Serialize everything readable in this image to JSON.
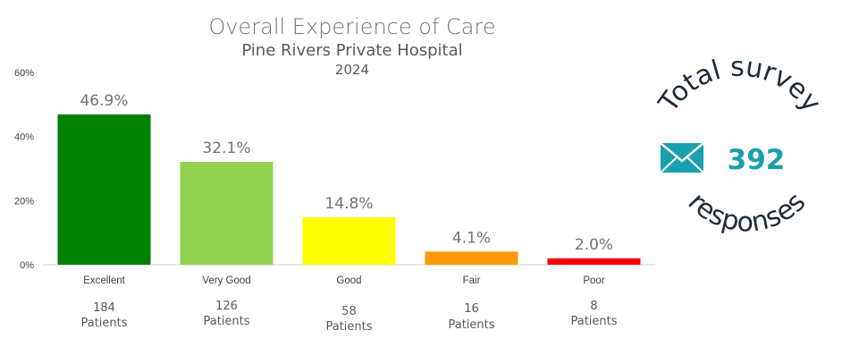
{
  "chart_data": {
    "type": "bar",
    "title": "Overall Experience of Care",
    "subtitle": "Pine Rivers Private Hospital",
    "year": "2024",
    "categories": [
      "Excellent",
      "Very Good",
      "Good",
      "Fair",
      "Poor"
    ],
    "values": [
      46.9,
      32.1,
      14.8,
      4.1,
      2.0
    ],
    "data_labels": [
      "46.9%",
      "32.1%",
      "14.8%",
      "4.1%",
      "2.0%"
    ],
    "patient_counts": [
      "184",
      "126",
      "58",
      "16",
      "8"
    ],
    "patients_label": "Patients",
    "bar_colors": [
      "#008000",
      "#92d050",
      "#ffff00",
      "#ff9900",
      "#ff0000"
    ],
    "ylim": [
      0,
      60
    ],
    "yticks": [
      0,
      20,
      40,
      60
    ],
    "ytick_labels": [
      "0%",
      "20%",
      "40%",
      "60%"
    ],
    "grid": false,
    "xlabel": "",
    "ylabel": ""
  },
  "survey_badge": {
    "top_text": "Total survey",
    "bottom_text": "responses",
    "count": "392",
    "icon": "envelope-icon",
    "icon_color": "#1a9fae",
    "number_color": "#1a9fae",
    "text_color": "#1f2c3a"
  }
}
